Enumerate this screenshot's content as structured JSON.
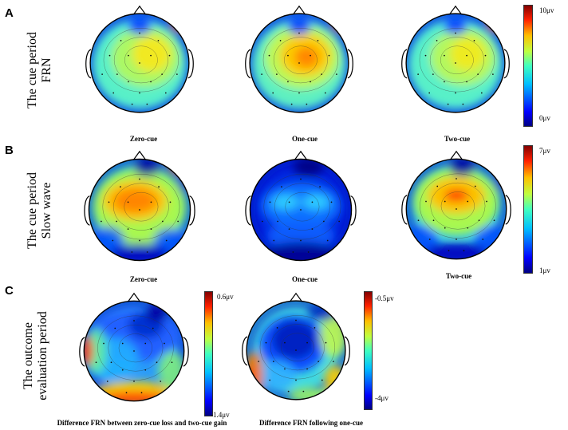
{
  "panels": [
    {
      "letter": "A",
      "row_label": [
        "The cue period",
        "FRN"
      ],
      "colorbar": {
        "max": "10μv",
        "min": "0μv"
      },
      "maps": [
        {
          "caption": "Zero-cue"
        },
        {
          "caption": "One-cue"
        },
        {
          "caption": "Two-cue"
        }
      ]
    },
    {
      "letter": "B",
      "row_label": [
        "The cue period",
        "Slow wave"
      ],
      "colorbar": {
        "max": "7μv",
        "min": "1μv"
      },
      "maps": [
        {
          "caption": "Zero-cue"
        },
        {
          "caption": "One-cue"
        },
        {
          "caption": "Two-cue"
        }
      ]
    },
    {
      "letter": "C",
      "row_label": [
        "The outcome",
        "evaluation period"
      ],
      "colorbars": [
        {
          "max": "0.6μv",
          "min": "-1.4μv"
        },
        {
          "max": "-0.5μv",
          "min": "-4μv"
        }
      ],
      "maps": [
        {
          "caption": "Difference FRN between zero-cue loss and two-cue gain"
        },
        {
          "caption": "Difference FRN following one-cue"
        }
      ]
    }
  ],
  "colors": {
    "colormap": [
      "#00007f",
      "#0000ff",
      "#0080ff",
      "#00ffff",
      "#80ff80",
      "#ffff00",
      "#ff8000",
      "#ff0000",
      "#7f0000"
    ]
  }
}
